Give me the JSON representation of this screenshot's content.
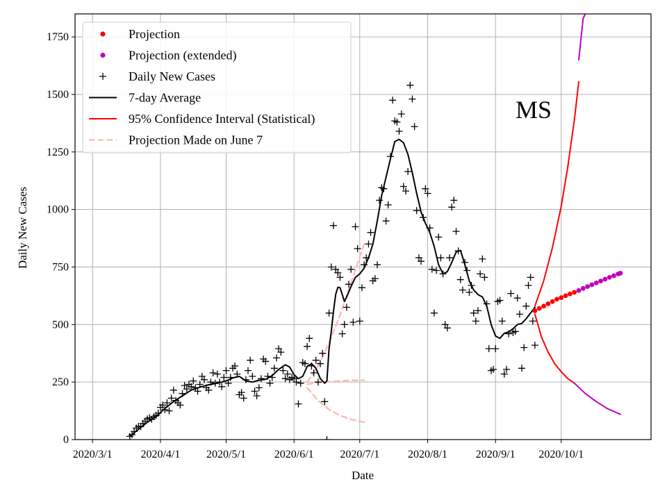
{
  "chart_data": {
    "type": "scatter",
    "title": "",
    "annotation": "MS",
    "xlabel": "Date",
    "ylabel": "Daily New Cases",
    "x_range": [
      "2020-02-22",
      "2020-11-11"
    ],
    "ylim": [
      0,
      1850
    ],
    "grid": true,
    "legend_position": "top-left",
    "x_ticks": [
      {
        "date": "2020-03-01",
        "label": "2020/3/1"
      },
      {
        "date": "2020-04-01",
        "label": "2020/4/1"
      },
      {
        "date": "2020-05-01",
        "label": "2020/5/1"
      },
      {
        "date": "2020-06-01",
        "label": "2020/6/1"
      },
      {
        "date": "2020-07-01",
        "label": "2020/7/1"
      },
      {
        "date": "2020-08-01",
        "label": "2020/8/1"
      },
      {
        "date": "2020-09-01",
        "label": "2020/9/1"
      },
      {
        "date": "2020-10-01",
        "label": "2020/10/1"
      }
    ],
    "y_ticks": [
      0,
      250,
      500,
      750,
      1000,
      1250,
      1500,
      1750
    ],
    "colors": {
      "projection": "#ff0000",
      "projection_extended": "#bf00bf",
      "daily": "#000000",
      "average": "#000000",
      "ci": "#ff0000",
      "june7": "#ffb6b0",
      "grid": "#b0b0b0"
    },
    "legend": [
      {
        "label": "Projection",
        "style": "dot",
        "color": "#ff0000"
      },
      {
        "label": "Projection (extended)",
        "style": "dot",
        "color": "#bf00bf"
      },
      {
        "label": "Daily New Cases",
        "style": "plus",
        "color": "#000000"
      },
      {
        "label": "7-day Average",
        "style": "line",
        "color": "#000000"
      },
      {
        "label": "95% Confidence Interval (Statistical)",
        "style": "line",
        "color": "#ff0000"
      },
      {
        "label": "Projection Made on June 7",
        "style": "dash",
        "color": "#ffb6b0"
      }
    ],
    "daily_new_cases": [
      [
        "2020-03-18",
        14
      ],
      [
        "2020-03-19",
        21
      ],
      [
        "2020-03-20",
        35
      ],
      [
        "2020-03-21",
        50
      ],
      [
        "2020-03-22",
        58
      ],
      [
        "2020-03-23",
        56
      ],
      [
        "2020-03-24",
        70
      ],
      [
        "2020-03-25",
        80
      ],
      [
        "2020-03-26",
        90
      ],
      [
        "2020-03-27",
        95
      ],
      [
        "2020-03-28",
        88
      ],
      [
        "2020-03-29",
        100
      ],
      [
        "2020-03-30",
        105
      ],
      [
        "2020-03-31",
        115
      ],
      [
        "2020-04-01",
        140
      ],
      [
        "2020-04-02",
        150
      ],
      [
        "2020-04-03",
        130
      ],
      [
        "2020-04-04",
        160
      ],
      [
        "2020-04-05",
        125
      ],
      [
        "2020-04-06",
        180
      ],
      [
        "2020-04-07",
        215
      ],
      [
        "2020-04-08",
        170
      ],
      [
        "2020-04-09",
        160
      ],
      [
        "2020-04-10",
        150
      ],
      [
        "2020-04-11",
        200
      ],
      [
        "2020-04-12",
        235
      ],
      [
        "2020-04-13",
        220
      ],
      [
        "2020-04-14",
        240
      ],
      [
        "2020-04-15",
        230
      ],
      [
        "2020-04-16",
        255
      ],
      [
        "2020-04-17",
        225
      ],
      [
        "2020-04-18",
        210
      ],
      [
        "2020-04-19",
        240
      ],
      [
        "2020-04-20",
        275
      ],
      [
        "2020-04-21",
        260
      ],
      [
        "2020-04-22",
        225
      ],
      [
        "2020-04-23",
        215
      ],
      [
        "2020-04-24",
        250
      ],
      [
        "2020-04-25",
        290
      ],
      [
        "2020-04-26",
        245
      ],
      [
        "2020-04-27",
        285
      ],
      [
        "2020-04-28",
        250
      ],
      [
        "2020-04-29",
        230
      ],
      [
        "2020-04-30",
        270
      ],
      [
        "2020-05-01",
        300
      ],
      [
        "2020-05-02",
        245
      ],
      [
        "2020-05-03",
        270
      ],
      [
        "2020-05-04",
        310
      ],
      [
        "2020-05-05",
        320
      ],
      [
        "2020-05-06",
        285
      ],
      [
        "2020-05-07",
        195
      ],
      [
        "2020-05-08",
        205
      ],
      [
        "2020-05-09",
        180
      ],
      [
        "2020-05-10",
        260
      ],
      [
        "2020-05-11",
        300
      ],
      [
        "2020-05-12",
        345
      ],
      [
        "2020-05-13",
        275
      ],
      [
        "2020-05-14",
        210
      ],
      [
        "2020-05-15",
        190
      ],
      [
        "2020-05-16",
        225
      ],
      [
        "2020-05-17",
        265
      ],
      [
        "2020-05-18",
        350
      ],
      [
        "2020-05-19",
        340
      ],
      [
        "2020-05-20",
        275
      ],
      [
        "2020-05-21",
        245
      ],
      [
        "2020-05-22",
        270
      ],
      [
        "2020-05-23",
        310
      ],
      [
        "2020-05-24",
        355
      ],
      [
        "2020-05-25",
        395
      ],
      [
        "2020-05-26",
        380
      ],
      [
        "2020-05-27",
        300
      ],
      [
        "2020-05-28",
        265
      ],
      [
        "2020-05-29",
        285
      ],
      [
        "2020-05-30",
        260
      ],
      [
        "2020-05-31",
        270
      ],
      [
        "2020-06-01",
        265
      ],
      [
        "2020-06-02",
        250
      ],
      [
        "2020-06-03",
        155
      ],
      [
        "2020-06-04",
        245
      ],
      [
        "2020-06-05",
        335
      ],
      [
        "2020-06-06",
        330
      ],
      [
        "2020-06-07",
        405
      ],
      [
        "2020-06-08",
        440
      ],
      [
        "2020-06-09",
        320
      ],
      [
        "2020-06-10",
        290
      ],
      [
        "2020-06-11",
        345
      ],
      [
        "2020-06-12",
        250
      ],
      [
        "2020-06-13",
        330
      ],
      [
        "2020-06-14",
        375
      ],
      [
        "2020-06-15",
        165
      ],
      [
        "2020-06-16",
        0
      ],
      [
        "2020-06-17",
        550
      ],
      [
        "2020-06-18",
        750
      ],
      [
        "2020-06-19",
        930
      ],
      [
        "2020-06-20",
        740
      ],
      [
        "2020-06-21",
        725
      ],
      [
        "2020-06-22",
        705
      ],
      [
        "2020-06-23",
        460
      ],
      [
        "2020-06-24",
        500
      ],
      [
        "2020-06-25",
        575
      ],
      [
        "2020-06-26",
        675
      ],
      [
        "2020-06-27",
        740
      ],
      [
        "2020-06-28",
        510
      ],
      [
        "2020-06-29",
        925
      ],
      [
        "2020-06-30",
        830
      ],
      [
        "2020-07-01",
        515
      ],
      [
        "2020-07-02",
        660
      ],
      [
        "2020-07-03",
        760
      ],
      [
        "2020-07-04",
        790
      ],
      [
        "2020-07-05",
        850
      ],
      [
        "2020-07-06",
        900
      ],
      [
        "2020-07-07",
        690
      ],
      [
        "2020-07-08",
        700
      ],
      [
        "2020-07-09",
        760
      ],
      [
        "2020-07-10",
        1040
      ],
      [
        "2020-07-11",
        1095
      ],
      [
        "2020-07-12",
        1090
      ],
      [
        "2020-07-13",
        950
      ],
      [
        "2020-07-14",
        1020
      ],
      [
        "2020-07-15",
        1230
      ],
      [
        "2020-07-16",
        1475
      ],
      [
        "2020-07-17",
        1385
      ],
      [
        "2020-07-18",
        1380
      ],
      [
        "2020-07-19",
        1340
      ],
      [
        "2020-07-20",
        1415
      ],
      [
        "2020-07-21",
        1100
      ],
      [
        "2020-07-22",
        1080
      ],
      [
        "2020-07-23",
        1165
      ],
      [
        "2020-07-24",
        1540
      ],
      [
        "2020-07-25",
        1480
      ],
      [
        "2020-07-26",
        1360
      ],
      [
        "2020-07-27",
        995
      ],
      [
        "2020-07-28",
        790
      ],
      [
        "2020-07-29",
        775
      ],
      [
        "2020-07-30",
        965
      ],
      [
        "2020-07-31",
        1090
      ],
      [
        "2020-08-01",
        1070
      ],
      [
        "2020-08-02",
        920
      ],
      [
        "2020-08-03",
        740
      ],
      [
        "2020-08-04",
        550
      ],
      [
        "2020-08-05",
        735
      ],
      [
        "2020-08-06",
        880
      ],
      [
        "2020-08-07",
        790
      ],
      [
        "2020-08-08",
        720
      ],
      [
        "2020-08-09",
        500
      ],
      [
        "2020-08-10",
        485
      ],
      [
        "2020-08-11",
        790
      ],
      [
        "2020-08-12",
        1010
      ],
      [
        "2020-08-13",
        1040
      ],
      [
        "2020-08-14",
        905
      ],
      [
        "2020-08-15",
        820
      ],
      [
        "2020-08-16",
        695
      ],
      [
        "2020-08-17",
        650
      ],
      [
        "2020-08-18",
        770
      ],
      [
        "2020-08-19",
        735
      ],
      [
        "2020-08-20",
        640
      ],
      [
        "2020-08-21",
        670
      ],
      [
        "2020-08-22",
        550
      ],
      [
        "2020-08-23",
        515
      ],
      [
        "2020-08-24",
        560
      ],
      [
        "2020-08-25",
        720
      ],
      [
        "2020-08-26",
        785
      ],
      [
        "2020-08-27",
        705
      ],
      [
        "2020-08-28",
        590
      ],
      [
        "2020-08-29",
        395
      ],
      [
        "2020-08-30",
        300
      ],
      [
        "2020-08-31",
        305
      ],
      [
        "2020-09-01",
        395
      ],
      [
        "2020-09-02",
        600
      ],
      [
        "2020-09-03",
        605
      ],
      [
        "2020-09-04",
        515
      ],
      [
        "2020-09-05",
        285
      ],
      [
        "2020-09-06",
        305
      ],
      [
        "2020-09-07",
        460
      ],
      [
        "2020-09-08",
        635
      ],
      [
        "2020-09-09",
        465
      ],
      [
        "2020-09-10",
        470
      ],
      [
        "2020-09-11",
        615
      ],
      [
        "2020-09-12",
        545
      ],
      [
        "2020-09-13",
        310
      ],
      [
        "2020-09-14",
        400
      ],
      [
        "2020-09-15",
        580
      ],
      [
        "2020-09-16",
        670
      ],
      [
        "2020-09-17",
        705
      ],
      [
        "2020-09-18",
        515
      ],
      [
        "2020-09-19",
        410
      ]
    ],
    "seven_day_average": [
      [
        "2020-03-18",
        14
      ],
      [
        "2020-03-22",
        45
      ],
      [
        "2020-03-26",
        75
      ],
      [
        "2020-03-30",
        100
      ],
      [
        "2020-04-03",
        135
      ],
      [
        "2020-04-07",
        165
      ],
      [
        "2020-04-11",
        190
      ],
      [
        "2020-04-15",
        215
      ],
      [
        "2020-04-19",
        228
      ],
      [
        "2020-04-23",
        238
      ],
      [
        "2020-04-27",
        245
      ],
      [
        "2020-05-01",
        255
      ],
      [
        "2020-05-04",
        268
      ],
      [
        "2020-05-07",
        275
      ],
      [
        "2020-05-10",
        255
      ],
      [
        "2020-05-13",
        250
      ],
      [
        "2020-05-16",
        258
      ],
      [
        "2020-05-19",
        262
      ],
      [
        "2020-05-22",
        278
      ],
      [
        "2020-05-25",
        305
      ],
      [
        "2020-05-28",
        325
      ],
      [
        "2020-05-30",
        315
      ],
      [
        "2020-06-01",
        282
      ],
      [
        "2020-06-03",
        265
      ],
      [
        "2020-06-05",
        275
      ],
      [
        "2020-06-07",
        318
      ],
      [
        "2020-06-09",
        330
      ],
      [
        "2020-06-11",
        310
      ],
      [
        "2020-06-13",
        265
      ],
      [
        "2020-06-15",
        245
      ],
      [
        "2020-06-16",
        255
      ],
      [
        "2020-06-17",
        395
      ],
      [
        "2020-06-18",
        470
      ],
      [
        "2020-06-19",
        555
      ],
      [
        "2020-06-20",
        630
      ],
      [
        "2020-06-21",
        662
      ],
      [
        "2020-06-22",
        660
      ],
      [
        "2020-06-23",
        630
      ],
      [
        "2020-06-24",
        600
      ],
      [
        "2020-06-25",
        620
      ],
      [
        "2020-06-27",
        665
      ],
      [
        "2020-06-29",
        705
      ],
      [
        "2020-07-01",
        720
      ],
      [
        "2020-07-03",
        745
      ],
      [
        "2020-07-05",
        790
      ],
      [
        "2020-07-07",
        850
      ],
      [
        "2020-07-09",
        950
      ],
      [
        "2020-07-11",
        1060
      ],
      [
        "2020-07-13",
        1140
      ],
      [
        "2020-07-15",
        1220
      ],
      [
        "2020-07-17",
        1295
      ],
      [
        "2020-07-19",
        1305
      ],
      [
        "2020-07-21",
        1290
      ],
      [
        "2020-07-23",
        1240
      ],
      [
        "2020-07-25",
        1160
      ],
      [
        "2020-07-27",
        1070
      ],
      [
        "2020-07-29",
        990
      ],
      [
        "2020-07-31",
        940
      ],
      [
        "2020-08-02",
        900
      ],
      [
        "2020-08-04",
        840
      ],
      [
        "2020-08-06",
        760
      ],
      [
        "2020-08-08",
        720
      ],
      [
        "2020-08-10",
        730
      ],
      [
        "2020-08-12",
        770
      ],
      [
        "2020-08-14",
        815
      ],
      [
        "2020-08-16",
        822
      ],
      [
        "2020-08-18",
        760
      ],
      [
        "2020-08-20",
        690
      ],
      [
        "2020-08-22",
        650
      ],
      [
        "2020-08-24",
        630
      ],
      [
        "2020-08-26",
        620
      ],
      [
        "2020-08-28",
        580
      ],
      [
        "2020-08-30",
        500
      ],
      [
        "2020-09-01",
        450
      ],
      [
        "2020-09-03",
        440
      ],
      [
        "2020-09-05",
        462
      ],
      [
        "2020-09-07",
        468
      ],
      [
        "2020-09-09",
        482
      ],
      [
        "2020-09-11",
        500
      ],
      [
        "2020-09-13",
        505
      ],
      [
        "2020-09-15",
        525
      ],
      [
        "2020-09-17",
        550
      ],
      [
        "2020-09-19",
        575
      ]
    ],
    "projection": [
      [
        "2020-09-19",
        560
      ],
      [
        "2020-09-21",
        570
      ],
      [
        "2020-09-23",
        580
      ],
      [
        "2020-09-25",
        590
      ],
      [
        "2020-09-27",
        600
      ],
      [
        "2020-09-29",
        610
      ],
      [
        "2020-10-01",
        617
      ],
      [
        "2020-10-03",
        625
      ],
      [
        "2020-10-05",
        633
      ],
      [
        "2020-10-07",
        640
      ]
    ],
    "projection_extended": [
      [
        "2020-10-09",
        648
      ],
      [
        "2020-10-11",
        657
      ],
      [
        "2020-10-13",
        665
      ],
      [
        "2020-10-15",
        673
      ],
      [
        "2020-10-17",
        681
      ],
      [
        "2020-10-19",
        689
      ],
      [
        "2020-10-21",
        697
      ],
      [
        "2020-10-23",
        705
      ],
      [
        "2020-10-25",
        712
      ],
      [
        "2020-10-27",
        720
      ],
      [
        "2020-10-28",
        723
      ]
    ],
    "ci_upper": [
      [
        "2020-09-19",
        580
      ],
      [
        "2020-09-23",
        690
      ],
      [
        "2020-09-27",
        835
      ],
      [
        "2020-10-01",
        1015
      ],
      [
        "2020-10-04",
        1185
      ],
      [
        "2020-10-07",
        1390
      ],
      [
        "2020-10-09",
        1555
      ]
    ],
    "ci_upper_extended": [
      [
        "2020-10-09",
        1650
      ],
      [
        "2020-10-11",
        1830
      ],
      [
        "2020-10-12",
        1850
      ]
    ],
    "ci_lower": [
      [
        "2020-09-19",
        545
      ],
      [
        "2020-09-22",
        445
      ],
      [
        "2020-09-25",
        380
      ],
      [
        "2020-09-28",
        330
      ],
      [
        "2020-10-01",
        295
      ],
      [
        "2020-10-04",
        265
      ],
      [
        "2020-10-07",
        245
      ]
    ],
    "ci_lower_extended": [
      [
        "2020-10-07",
        245
      ],
      [
        "2020-10-12",
        200
      ],
      [
        "2020-10-17",
        165
      ],
      [
        "2020-10-22",
        135
      ],
      [
        "2020-10-28",
        110
      ]
    ],
    "june7_projection_mean": [
      [
        "2020-06-07",
        240
      ],
      [
        "2020-06-12",
        248
      ],
      [
        "2020-06-17",
        252
      ],
      [
        "2020-06-22",
        255
      ],
      [
        "2020-06-27",
        257
      ],
      [
        "2020-07-03",
        258
      ]
    ],
    "june7_projection_upper": [
      [
        "2020-06-07",
        250
      ],
      [
        "2020-06-12",
        320
      ],
      [
        "2020-06-17",
        420
      ],
      [
        "2020-06-22",
        540
      ],
      [
        "2020-06-27",
        680
      ],
      [
        "2020-07-03",
        850
      ]
    ],
    "june7_projection_lower": [
      [
        "2020-06-07",
        225
      ],
      [
        "2020-06-12",
        170
      ],
      [
        "2020-06-17",
        130
      ],
      [
        "2020-06-22",
        105
      ],
      [
        "2020-06-27",
        88
      ],
      [
        "2020-07-03",
        75
      ]
    ]
  }
}
